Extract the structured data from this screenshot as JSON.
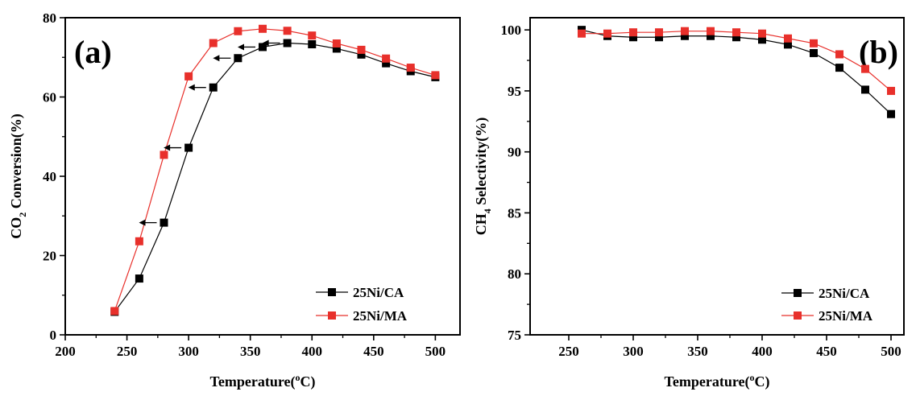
{
  "chart_data": [
    {
      "type": "line",
      "panel_label": "(a)",
      "xlabel": {
        "main": "Temperature(",
        "sup": "o",
        "tail": "C)"
      },
      "ylabel": {
        "pre": "CO",
        "sub": "2",
        "post": " Conversion(%)"
      },
      "xlim": [
        200,
        520
      ],
      "ylim": [
        0,
        80
      ],
      "xticks": [
        200,
        250,
        300,
        350,
        400,
        450,
        500
      ],
      "yticks": [
        0,
        20,
        40,
        60,
        80
      ],
      "legend_position": "bottom-right",
      "series": [
        {
          "name": "25Ni/CA",
          "color": "#000000",
          "x": [
            240,
            260,
            280,
            300,
            320,
            340,
            360,
            380,
            400,
            420,
            440,
            460,
            480,
            500
          ],
          "y": [
            5.8,
            14.2,
            28.3,
            47.2,
            62.4,
            69.8,
            72.6,
            73.6,
            73.3,
            72.2,
            70.7,
            68.5,
            66.5,
            65.0
          ]
        },
        {
          "name": "25Ni/MA",
          "color": "#e8302b",
          "x": [
            240,
            260,
            280,
            300,
            320,
            340,
            360,
            380,
            400,
            420,
            440,
            460,
            480,
            500
          ],
          "y": [
            6.0,
            23.6,
            45.4,
            65.2,
            73.6,
            76.6,
            77.2,
            76.7,
            75.5,
            73.5,
            71.9,
            69.7,
            67.4,
            65.5
          ]
        }
      ],
      "annotations": {
        "arrow_y": [
          28.3,
          47.2,
          62.4,
          69.8,
          72.6,
          73.6
        ]
      }
    },
    {
      "type": "line",
      "panel_label": "(b)",
      "xlabel": {
        "main": "Temperature(",
        "sup": "o",
        "tail": "C)"
      },
      "ylabel": {
        "pre": "CH",
        "sub": "4",
        "post": " Selectivity(%)"
      },
      "xlim": [
        220,
        510
      ],
      "ylim": [
        75,
        101
      ],
      "xticks": [
        250,
        300,
        350,
        400,
        450,
        500
      ],
      "yticks": [
        75,
        80,
        85,
        90,
        95,
        100
      ],
      "legend_position": "bottom-right",
      "series": [
        {
          "name": "25Ni/CA",
          "color": "#000000",
          "x": [
            260,
            280,
            300,
            320,
            340,
            360,
            380,
            400,
            420,
            440,
            460,
            480,
            500
          ],
          "y": [
            100.0,
            99.5,
            99.4,
            99.4,
            99.5,
            99.5,
            99.4,
            99.2,
            98.8,
            98.1,
            96.9,
            95.1,
            93.1
          ]
        },
        {
          "name": "25Ni/MA",
          "color": "#e8302b",
          "x": [
            260,
            280,
            300,
            320,
            340,
            360,
            380,
            400,
            420,
            440,
            460,
            480,
            500
          ],
          "y": [
            99.7,
            99.7,
            99.8,
            99.8,
            99.9,
            99.9,
            99.8,
            99.7,
            99.3,
            98.9,
            98.0,
            96.8,
            95.0
          ]
        }
      ]
    }
  ]
}
